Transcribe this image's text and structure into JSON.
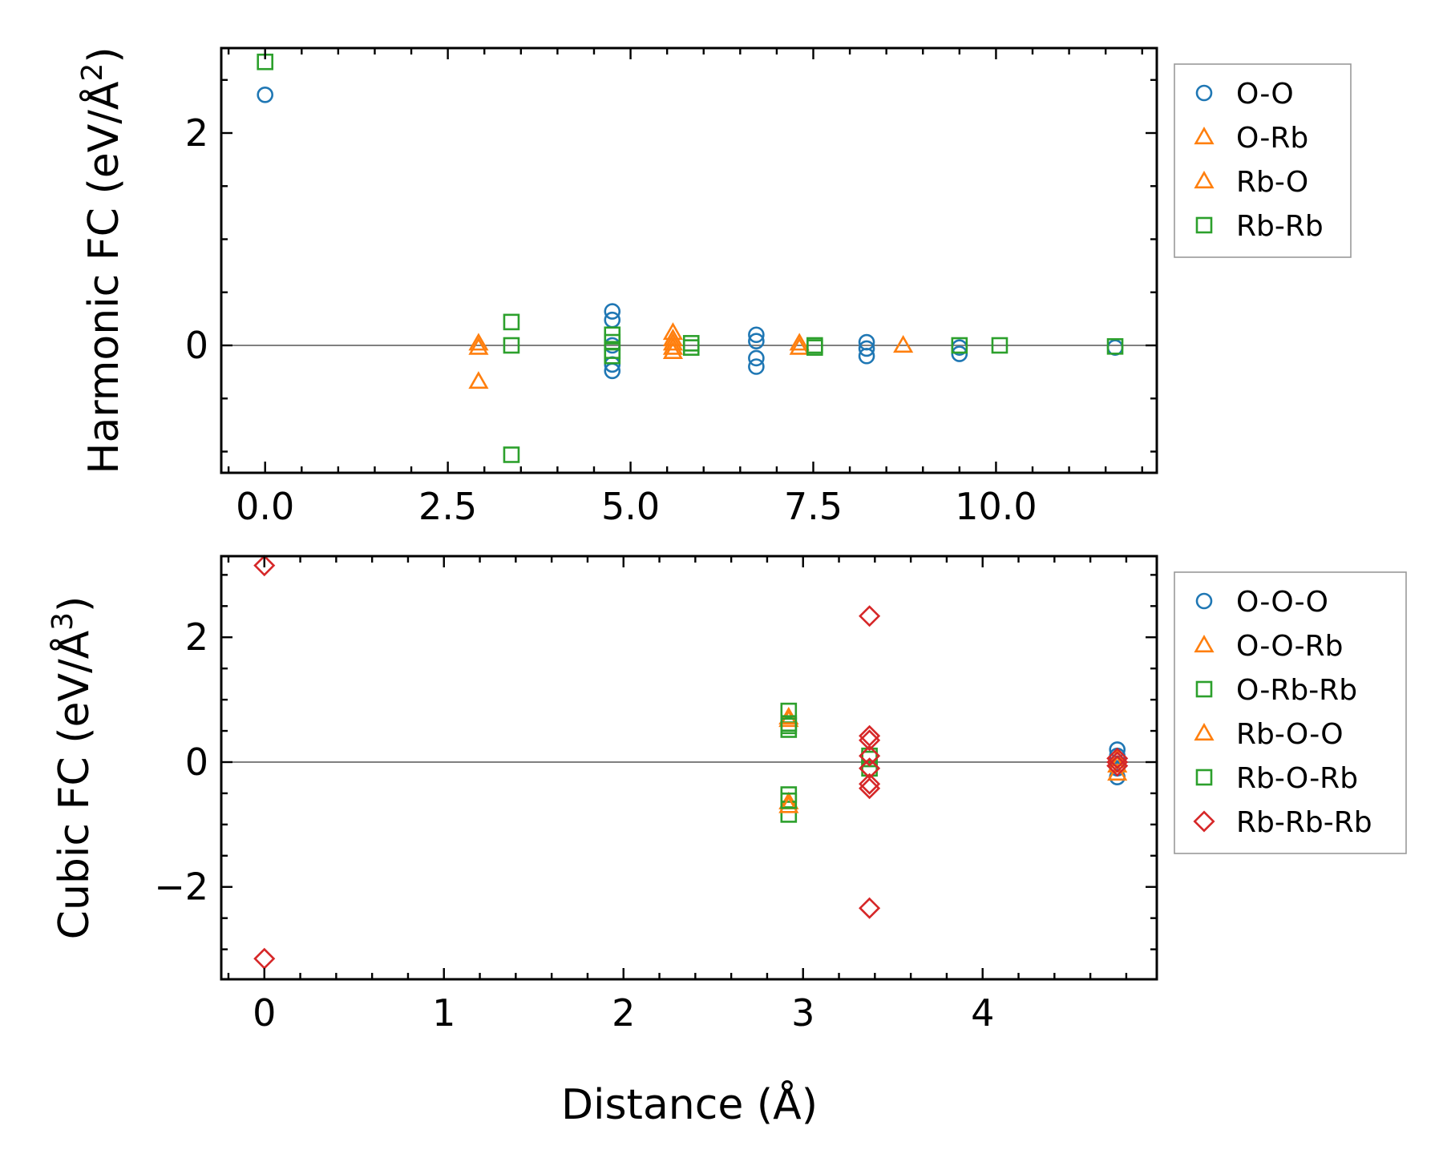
{
  "chart_data": [
    {
      "type": "scatter",
      "title": "",
      "xlabel": "",
      "ylabel": "Harmonic FC (eV/Å²)",
      "ylabel_parts": {
        "main": "Harmonic FC (eV/Å",
        "sup": "2",
        "end": ")"
      },
      "xlim": [
        -0.6,
        12.2
      ],
      "ylim": [
        -1.2,
        2.8
      ],
      "xticks": [
        0.0,
        2.5,
        5.0,
        7.5,
        10.0
      ],
      "xtick_labels": [
        "0.0",
        "2.5",
        "5.0",
        "7.5",
        "10.0"
      ],
      "yticks": [
        0,
        2
      ],
      "ytick_labels": [
        "0",
        "2"
      ],
      "zero_line": true,
      "legend_position": "outside-right-top",
      "series": [
        {
          "name": "O-O",
          "marker": "circle",
          "color": "#1f77b4",
          "x": [
            0.0,
            4.75,
            4.75,
            4.75,
            4.75,
            4.75,
            6.72,
            6.72,
            6.72,
            6.72,
            8.23,
            8.23,
            8.23,
            9.5,
            9.5,
            11.63
          ],
          "y": [
            2.36,
            0.32,
            0.24,
            -0.18,
            -0.24,
            0.0,
            0.1,
            0.04,
            -0.12,
            -0.2,
            0.03,
            -0.03,
            -0.1,
            -0.02,
            -0.08,
            -0.02
          ]
        },
        {
          "name": "O-Rb",
          "marker": "triangle-up",
          "color": "#ff7f0e",
          "x": [
            2.92,
            5.58,
            5.58,
            5.58,
            7.31,
            8.73
          ],
          "y": [
            0.02,
            0.12,
            0.06,
            -0.06,
            0.02,
            0.0
          ]
        },
        {
          "name": "Rb-O",
          "marker": "triangle-up",
          "color": "#ff7f0e",
          "x": [
            2.92,
            2.92,
            5.58,
            5.58,
            7.31
          ],
          "y": [
            -0.02,
            -0.34,
            0.02,
            -0.02,
            -0.02
          ]
        },
        {
          "name": "Rb-Rb",
          "marker": "square",
          "color": "#2ca02c",
          "x": [
            0.0,
            3.37,
            3.37,
            3.37,
            4.75,
            4.75,
            4.75,
            4.75,
            5.83,
            5.83,
            7.52,
            7.52,
            9.5,
            10.05,
            11.63
          ],
          "y": [
            2.67,
            0.22,
            0.0,
            -1.03,
            0.1,
            0.03,
            -0.05,
            -0.1,
            0.02,
            -0.02,
            0.0,
            -0.02,
            0.0,
            0.0,
            -0.01
          ]
        }
      ]
    },
    {
      "type": "scatter",
      "title": "",
      "xlabel": "Distance (Å)",
      "ylabel": "Cubic FC (eV/Å³)",
      "ylabel_parts": {
        "main": "Cubic FC (eV/Å",
        "sup": "3",
        "end": ")"
      },
      "xlim": [
        -0.24,
        4.97
      ],
      "ylim": [
        -3.48,
        3.3
      ],
      "xticks": [
        0,
        1,
        2,
        3,
        4
      ],
      "xtick_labels": [
        "0",
        "1",
        "2",
        "3",
        "4"
      ],
      "yticks": [
        -2,
        0,
        2
      ],
      "ytick_labels": [
        "−2",
        "0",
        "2"
      ],
      "zero_line": true,
      "legend_position": "outside-right-top",
      "series": [
        {
          "name": "O-O-O",
          "marker": "circle",
          "color": "#1f77b4",
          "x": [
            4.75,
            4.75,
            4.75,
            4.75
          ],
          "y": [
            0.2,
            0.1,
            -0.1,
            -0.24
          ]
        },
        {
          "name": "O-O-Rb",
          "marker": "triangle-up",
          "color": "#ff7f0e",
          "x": [
            2.92,
            2.92,
            4.75,
            4.75
          ],
          "y": [
            0.68,
            -0.64,
            0.05,
            -0.18
          ]
        },
        {
          "name": "O-Rb-Rb",
          "marker": "square",
          "color": "#2ca02c",
          "x": [
            2.92,
            2.92,
            2.92,
            2.92,
            3.37,
            3.37
          ],
          "y": [
            0.82,
            0.52,
            -0.52,
            -0.84,
            0.1,
            -0.1
          ]
        },
        {
          "name": "Rb-O-O",
          "marker": "triangle-up",
          "color": "#ff7f0e",
          "x": [
            2.92,
            2.92,
            4.75
          ],
          "y": [
            0.72,
            -0.7,
            -0.05
          ]
        },
        {
          "name": "Rb-O-Rb",
          "marker": "square",
          "color": "#2ca02c",
          "x": [
            2.92,
            2.92,
            2.92,
            3.37
          ],
          "y": [
            0.62,
            -0.62,
            0.58,
            0.05
          ]
        },
        {
          "name": "Rb-Rb-Rb",
          "marker": "diamond",
          "color": "#d62728",
          "x": [
            0.0,
            0.0,
            3.37,
            3.37,
            3.37,
            3.37,
            3.37,
            3.37,
            3.37,
            3.37,
            4.75,
            4.75,
            4.75
          ],
          "y": [
            3.15,
            -3.15,
            2.34,
            0.42,
            0.35,
            0.1,
            -0.1,
            -0.35,
            -0.42,
            -2.34,
            0.06,
            0.0,
            -0.06
          ]
        }
      ]
    }
  ]
}
